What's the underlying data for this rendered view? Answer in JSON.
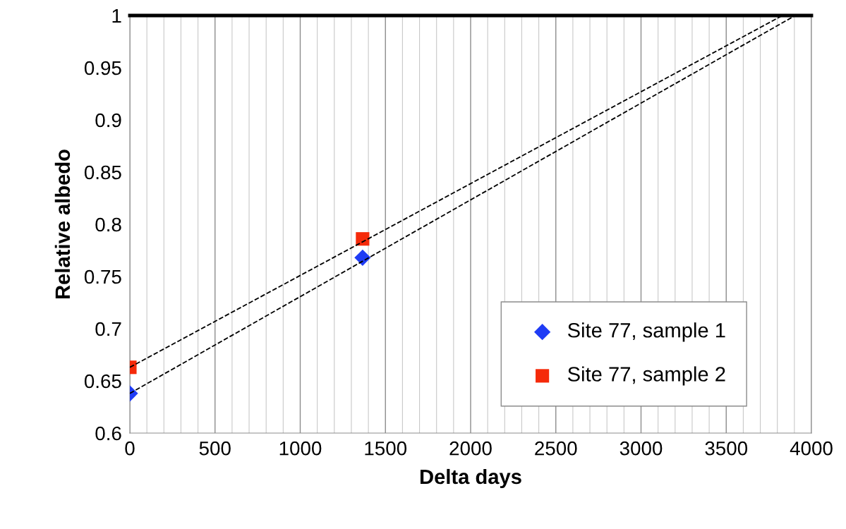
{
  "chart_data": {
    "type": "scatter",
    "xlabel": "Delta days",
    "ylabel": "Relative albedo",
    "xlim": [
      0,
      4000
    ],
    "xticks": [
      0,
      500,
      1000,
      1500,
      2000,
      2500,
      3000,
      3500,
      4000
    ],
    "ylim": [
      0.6,
      1
    ],
    "yticks": [
      0.6,
      0.65,
      0.7,
      0.75,
      0.8,
      0.85,
      0.9,
      0.95,
      1
    ],
    "grid": "x",
    "legend": "bottom right",
    "series": [
      {
        "name": "Site 77, sample 1",
        "color": "#1f3cf5",
        "marker": "diamond",
        "x": [
          0,
          1366
        ],
        "values": [
          0.638,
          0.768
        ]
      },
      {
        "name": "Site 77, sample 2",
        "color": "#f52a0a",
        "marker": "square",
        "x": [
          0,
          1366
        ],
        "values": [
          0.663,
          0.786
        ]
      },
      {
        "type": "line",
        "color": "#000000",
        "line_style": "dashed",
        "marker": "none",
        "x": [
          0,
          3905
        ],
        "values": [
          0.638,
          1
        ]
      },
      {
        "type": "line",
        "color": "#000000",
        "line_style": "dashed",
        "marker": "none",
        "x": [
          0,
          3830
        ],
        "values": [
          0.663,
          1
        ]
      }
    ]
  }
}
